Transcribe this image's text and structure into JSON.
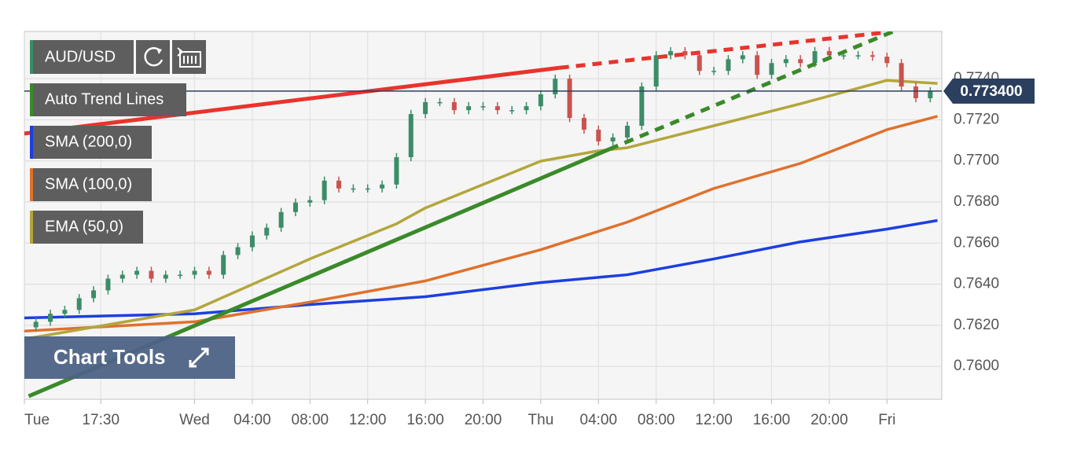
{
  "chart_data": {
    "type": "candlestick",
    "title": "AUD/USD",
    "up_color": "#3c8c68",
    "down_color": "#c9534e",
    "x": [
      -11,
      -10,
      -9,
      -8,
      -7,
      -6,
      -5,
      -4,
      -3,
      -2,
      -1,
      0,
      1,
      2,
      3,
      4,
      5,
      6,
      7,
      8,
      9,
      10,
      11,
      12,
      13,
      14,
      15,
      16,
      17,
      18,
      19,
      20,
      21,
      22,
      23,
      24,
      25,
      26,
      27,
      28,
      29,
      30,
      31,
      32,
      33,
      34,
      35,
      36,
      37,
      38,
      39,
      40,
      41,
      42,
      43,
      44,
      45,
      46,
      47,
      48,
      49,
      50,
      51
    ],
    "open": [
      0.7619,
      0.76217,
      0.76256,
      0.76275,
      0.76332,
      0.7637,
      0.76427,
      0.76446,
      0.76465,
      0.76427,
      0.76446,
      0.76446,
      0.76465,
      0.76446,
      0.76542,
      0.7658,
      0.76637,
      0.76675,
      0.76751,
      0.76797,
      0.76809,
      0.76904,
      0.76866,
      0.76866,
      0.76866,
      0.76885,
      0.77018,
      0.77228,
      0.77286,
      0.77286,
      0.77247,
      0.77266,
      0.77266,
      0.77247,
      0.77247,
      0.77266,
      0.77324,
      0.774,
      0.77209,
      0.77152,
      0.77095,
      0.77114,
      0.77171,
      0.77362,
      0.77514,
      0.77534,
      0.77514,
      0.77438,
      0.77438,
      0.77495,
      0.77514,
      0.77419,
      0.77476,
      0.77495,
      0.77476,
      0.77534,
      0.77514,
      0.77514,
      0.77514,
      0.77507,
      0.77476,
      0.77362,
      0.77305
    ],
    "high": [
      0.76237,
      0.76276,
      0.76295,
      0.76352,
      0.7639,
      0.76447,
      0.76466,
      0.76485,
      0.76485,
      0.76466,
      0.76466,
      0.76485,
      0.76485,
      0.76562,
      0.766,
      0.76657,
      0.76695,
      0.76771,
      0.76817,
      0.76829,
      0.76924,
      0.76924,
      0.76886,
      0.76886,
      0.76905,
      0.77038,
      0.77248,
      0.77306,
      0.77306,
      0.77306,
      0.77286,
      0.77286,
      0.77286,
      0.77267,
      0.77286,
      0.77344,
      0.7742,
      0.7742,
      0.77229,
      0.77172,
      0.77134,
      0.77191,
      0.77382,
      0.77534,
      0.77554,
      0.77554,
      0.77534,
      0.77458,
      0.77515,
      0.77534,
      0.77534,
      0.77496,
      0.77515,
      0.77515,
      0.77554,
      0.77554,
      0.77534,
      0.77534,
      0.77534,
      0.77527,
      0.77496,
      0.77382,
      0.77359
    ],
    "low": [
      0.7617,
      0.76197,
      0.76236,
      0.76255,
      0.76312,
      0.7635,
      0.76407,
      0.76426,
      0.76407,
      0.76407,
      0.76426,
      0.76426,
      0.76426,
      0.76426,
      0.76522,
      0.7656,
      0.76617,
      0.76655,
      0.76731,
      0.76777,
      0.76789,
      0.76846,
      0.76846,
      0.76846,
      0.76846,
      0.76865,
      0.76998,
      0.77208,
      0.77266,
      0.77227,
      0.77227,
      0.77246,
      0.77227,
      0.77227,
      0.77227,
      0.77246,
      0.77304,
      0.77189,
      0.77132,
      0.77075,
      0.77075,
      0.77094,
      0.77151,
      0.77342,
      0.77494,
      0.77494,
      0.77418,
      0.77418,
      0.77418,
      0.77475,
      0.77399,
      0.77399,
      0.77456,
      0.77456,
      0.77456,
      0.77494,
      0.77494,
      0.77494,
      0.77487,
      0.77456,
      0.77342,
      0.77285,
      0.77285
    ],
    "close": [
      0.76217,
      0.76256,
      0.76275,
      0.76332,
      0.7637,
      0.76427,
      0.76446,
      0.76465,
      0.76427,
      0.76446,
      0.76446,
      0.76465,
      0.76446,
      0.76542,
      0.7658,
      0.76637,
      0.76675,
      0.76751,
      0.76797,
      0.76809,
      0.76904,
      0.76866,
      0.76866,
      0.76866,
      0.76885,
      0.77018,
      0.77228,
      0.77286,
      0.77286,
      0.77247,
      0.77266,
      0.77266,
      0.77247,
      0.77247,
      0.77266,
      0.77324,
      0.774,
      0.77209,
      0.77152,
      0.77095,
      0.77114,
      0.77171,
      0.77362,
      0.77514,
      0.77534,
      0.77514,
      0.77438,
      0.77438,
      0.77495,
      0.77514,
      0.77419,
      0.77476,
      0.77495,
      0.77476,
      0.77534,
      0.77514,
      0.77514,
      0.77514,
      0.77507,
      0.77476,
      0.77362,
      0.77305,
      0.77339
    ],
    "xlim": [
      -11.8,
      51.8
    ],
    "xticks": [
      {
        "value": -11.8,
        "label": "Tue"
      },
      {
        "value": -6.5,
        "label": "17:30"
      },
      {
        "value": 0,
        "label": "Wed"
      },
      {
        "value": 4,
        "label": "04:00"
      },
      {
        "value": 8,
        "label": "08:00"
      },
      {
        "value": 12,
        "label": "12:00"
      },
      {
        "value": 16,
        "label": "16:00"
      },
      {
        "value": 20,
        "label": "20:00"
      },
      {
        "value": 24,
        "label": "Thu"
      },
      {
        "value": 28,
        "label": "04:00"
      },
      {
        "value": 32,
        "label": "08:00"
      },
      {
        "value": 36,
        "label": "12:00"
      },
      {
        "value": 40,
        "label": "16:00"
      },
      {
        "value": 44,
        "label": "20:00"
      },
      {
        "value": 48,
        "label": "Fri"
      }
    ],
    "ylim": [
      0.7584,
      0.7763
    ],
    "yticks": [
      {
        "value": 0.76,
        "label": "0.7600"
      },
      {
        "value": 0.762,
        "label": "0.7620"
      },
      {
        "value": 0.764,
        "label": "0.7640"
      },
      {
        "value": 0.766,
        "label": "0.7660"
      },
      {
        "value": 0.768,
        "label": "0.7680"
      },
      {
        "value": 0.77,
        "label": "0.7700"
      },
      {
        "value": 0.772,
        "label": "0.7720"
      },
      {
        "value": 0.774,
        "label": "0.7740"
      }
    ],
    "grid": true,
    "last_price": {
      "value": 0.7734,
      "label": "0.773400",
      "color": "#2b3f5e"
    },
    "series": [
      {
        "name": "SMA (200,0)",
        "color": "#1c3fe0",
        "x": [
          -11.8,
          0,
          8,
          16,
          24,
          30,
          36,
          42,
          48,
          51.5
        ],
        "values": [
          0.76236,
          0.76256,
          0.76301,
          0.76339,
          0.76408,
          0.76446,
          0.76523,
          0.76606,
          0.76668,
          0.7671
        ]
      },
      {
        "name": "SMA (100,0)",
        "color": "#e0712c",
        "x": [
          -11.8,
          0,
          8,
          16,
          24,
          30,
          36,
          42,
          48,
          51.5
        ],
        "values": [
          0.76172,
          0.76217,
          0.76313,
          0.76416,
          0.76568,
          0.76702,
          0.76866,
          0.76988,
          0.77152,
          0.77217
        ]
      },
      {
        "name": "EMA (50,0)",
        "color": "#b3a63c",
        "x": [
          -11.8,
          0,
          8,
          14,
          16,
          20,
          24,
          28,
          30,
          36,
          42,
          46,
          48,
          51.5
        ],
        "values": [
          0.76133,
          0.76275,
          0.76523,
          0.76694,
          0.76771,
          0.76885,
          0.76999,
          0.77049,
          0.77064,
          0.77171,
          0.77278,
          0.77354,
          0.77392,
          0.77377
        ]
      }
    ],
    "trend_lines": {
      "name": "Auto Trend Lines",
      "color": "#3a8a2a",
      "lines": [
        {
          "color": "#e8342c",
          "x": [
            -11.84,
            25.3,
            48.4
          ],
          "values": [
            0.77133,
            0.77453,
            0.77629
          ]
        },
        {
          "color": "#3a8a2a",
          "x": [
            -11.5,
            28.75,
            48.4
          ],
          "values": [
            0.75855,
            0.77057,
            0.77629
          ]
        }
      ]
    }
  },
  "ui": {
    "chart_tools_button": "Chart Tools"
  }
}
